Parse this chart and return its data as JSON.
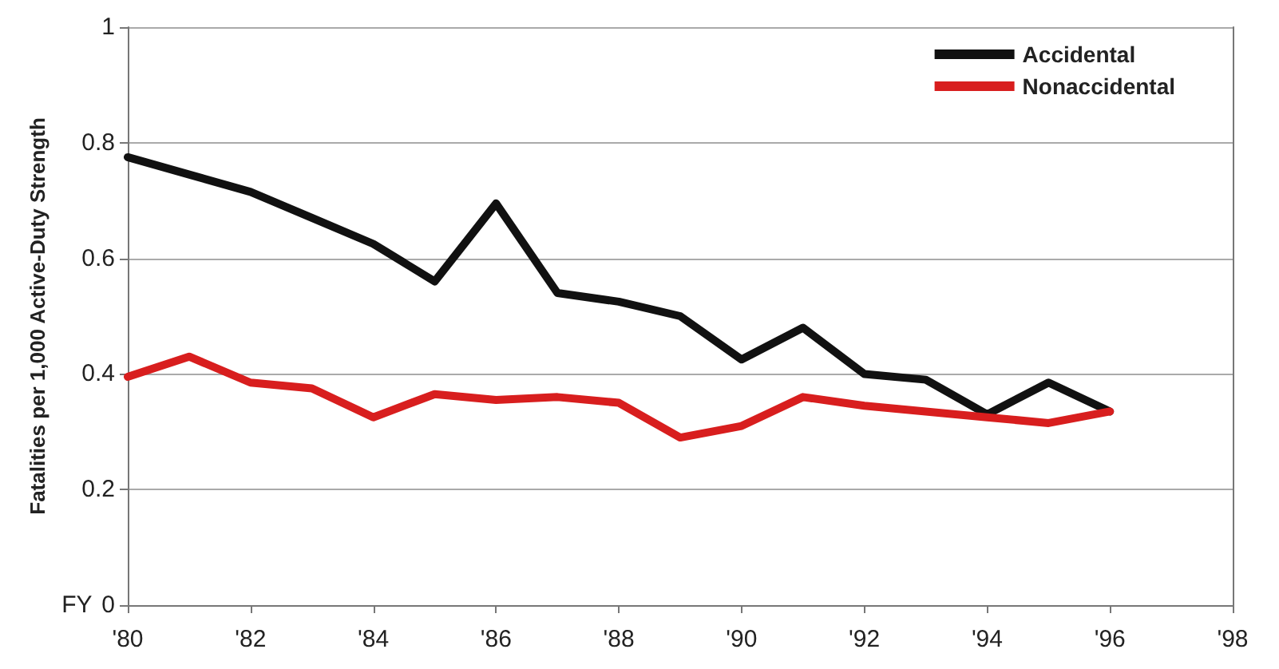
{
  "chart_data": {
    "type": "line",
    "xlabel": "FY",
    "ylabel": "Fatalities per 1,000 Active-Duty Strength",
    "x": [
      1980,
      1981,
      1982,
      1983,
      1984,
      1985,
      1986,
      1987,
      1988,
      1989,
      1990,
      1991,
      1992,
      1993,
      1994,
      1995,
      1996
    ],
    "series": [
      {
        "name": "Accidental",
        "color": "#111111",
        "values": [
          0.775,
          0.745,
          0.715,
          0.67,
          0.625,
          0.56,
          0.695,
          0.54,
          0.525,
          0.5,
          0.425,
          0.48,
          0.4,
          0.39,
          0.33,
          0.385,
          0.335
        ]
      },
      {
        "name": "Nonaccidental",
        "color": "#d81e1e",
        "values": [
          0.395,
          0.43,
          0.385,
          0.375,
          0.325,
          0.365,
          0.355,
          0.36,
          0.35,
          0.29,
          0.31,
          0.36,
          0.345,
          0.335,
          0.325,
          0.315,
          0.335
        ]
      }
    ],
    "xlim": [
      1980,
      1998
    ],
    "xticks": [
      {
        "value": 1980,
        "label": "'80"
      },
      {
        "value": 1982,
        "label": "'82"
      },
      {
        "value": 1984,
        "label": "'84"
      },
      {
        "value": 1986,
        "label": "'86"
      },
      {
        "value": 1988,
        "label": "'88"
      },
      {
        "value": 1990,
        "label": "'90"
      },
      {
        "value": 1992,
        "label": "'92"
      },
      {
        "value": 1994,
        "label": "'94"
      },
      {
        "value": 1996,
        "label": "'96"
      },
      {
        "value": 1998,
        "label": "'98"
      }
    ],
    "ylim": [
      0,
      1
    ],
    "yticks": [
      0,
      0.2,
      0.4,
      0.6,
      0.8,
      1
    ],
    "grid": "y",
    "legend": "top right",
    "marker": "none",
    "line_style": "solid"
  }
}
